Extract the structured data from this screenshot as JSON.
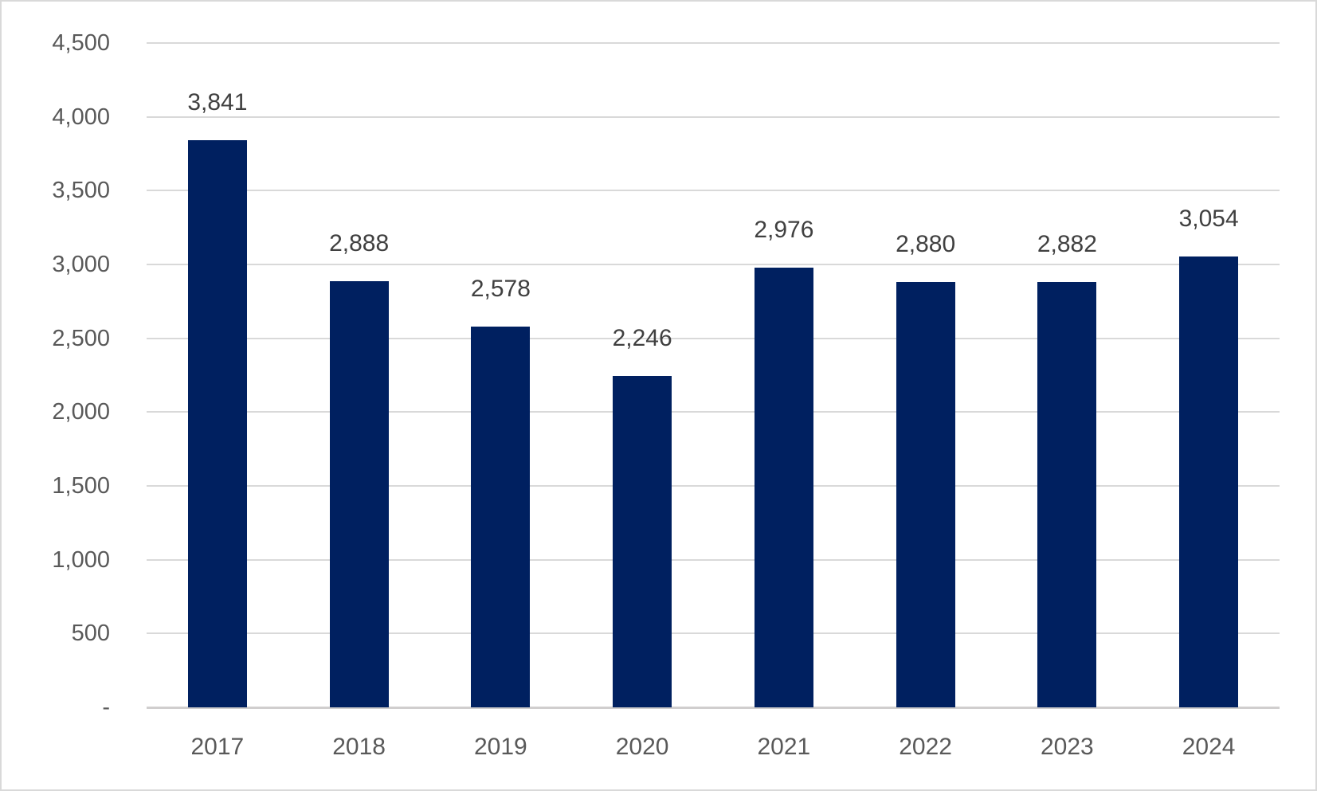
{
  "chart_data": {
    "type": "bar",
    "title": "",
    "xlabel": "",
    "ylabel": "",
    "categories": [
      "2017",
      "2018",
      "2019",
      "2020",
      "2021",
      "2022",
      "2023",
      "2024"
    ],
    "values": [
      3841,
      2888,
      2578,
      2246,
      2976,
      2880,
      2882,
      3054
    ],
    "value_labels": [
      "3,841",
      "2,888",
      "2,578",
      "2,246",
      "2,976",
      "2,880",
      "2,882",
      "3,054"
    ],
    "y_ticks": [
      {
        "value": 0,
        "label": "-"
      },
      {
        "value": 500,
        "label": "500"
      },
      {
        "value": 1000,
        "label": "1,000"
      },
      {
        "value": 1500,
        "label": "1,500"
      },
      {
        "value": 2000,
        "label": "2,000"
      },
      {
        "value": 2500,
        "label": "2,500"
      },
      {
        "value": 3000,
        "label": "3,000"
      },
      {
        "value": 3500,
        "label": "3,500"
      },
      {
        "value": 4000,
        "label": "4,000"
      },
      {
        "value": 4500,
        "label": "4,500"
      }
    ],
    "ylim": [
      0,
      4500
    ],
    "grid": "horizontal",
    "legend": "none",
    "colors": {
      "bar": "#002060",
      "gridline": "#D9D9D9",
      "axis_line": "#D0CECE",
      "axis_label": "#595959",
      "data_label": "#404040",
      "background": "#FFFFFF",
      "frame_border": "#D9D9D9"
    }
  }
}
